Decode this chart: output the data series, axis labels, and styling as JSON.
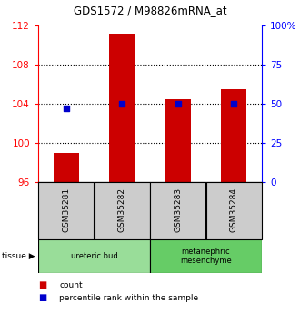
{
  "title": "GDS1572 / M98826mRNA_at",
  "samples": [
    "GSM35281",
    "GSM35282",
    "GSM35283",
    "GSM35284"
  ],
  "count_values": [
    99.0,
    111.2,
    104.5,
    105.5
  ],
  "percentile_values": [
    47.0,
    50.0,
    50.0,
    50.0
  ],
  "bar_baseline": 96,
  "ylim_left": [
    96,
    112
  ],
  "ylim_right": [
    0,
    100
  ],
  "yticks_left": [
    96,
    100,
    104,
    108,
    112
  ],
  "yticks_right": [
    0,
    25,
    50,
    75,
    100
  ],
  "ytick_labels_right": [
    "0",
    "25",
    "50",
    "75",
    "100%"
  ],
  "bar_color": "#cc0000",
  "dot_color": "#0000cc",
  "tissue_groups": [
    {
      "label": "ureteric bud",
      "indices": [
        0,
        1
      ],
      "color": "#99dd99"
    },
    {
      "label": "metanephric\nmesenchyme",
      "indices": [
        2,
        3
      ],
      "color": "#66cc66"
    }
  ],
  "legend_count_label": "count",
  "legend_pct_label": "percentile rank within the sample",
  "bar_width": 0.45,
  "gridline_values": [
    100,
    104,
    108
  ],
  "sample_box_color": "#cccccc"
}
